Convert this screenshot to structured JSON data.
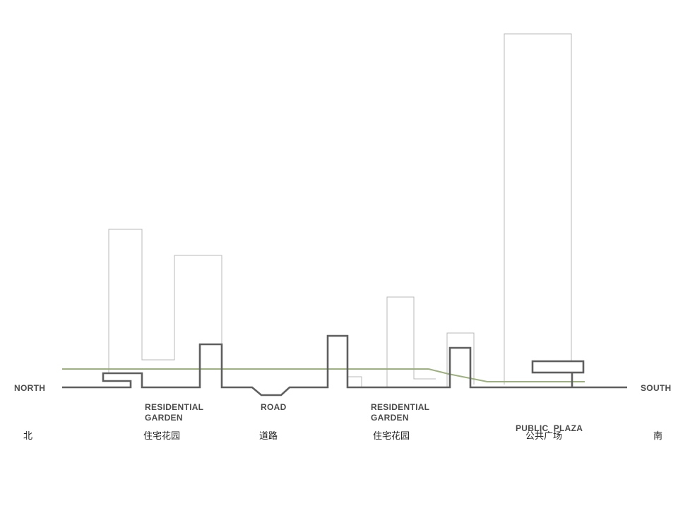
{
  "colors": {
    "ground": "#5f5f5f",
    "building_outline": "#b8b8b8",
    "green_line": "#9db07e",
    "label_text": "#4a4a4a",
    "chinese_text": "#222222"
  },
  "direction_labels": {
    "north": "NORTH",
    "south": "SOUTH"
  },
  "zone_labels": [
    {
      "line1": "RESIDENTIAL",
      "line2": "GARDEN",
      "chinese": "住宅花园"
    },
    {
      "line1": "ROAD",
      "line2": "",
      "chinese": "道路"
    },
    {
      "line1": "RESIDENTIAL",
      "line2": "GARDEN",
      "chinese": "住宅花园"
    },
    {
      "line1": "PUBLIC  PLAZA",
      "line2": "",
      "chinese": "公共广场"
    }
  ],
  "chinese_direction": {
    "north": "北",
    "south": "南"
  }
}
